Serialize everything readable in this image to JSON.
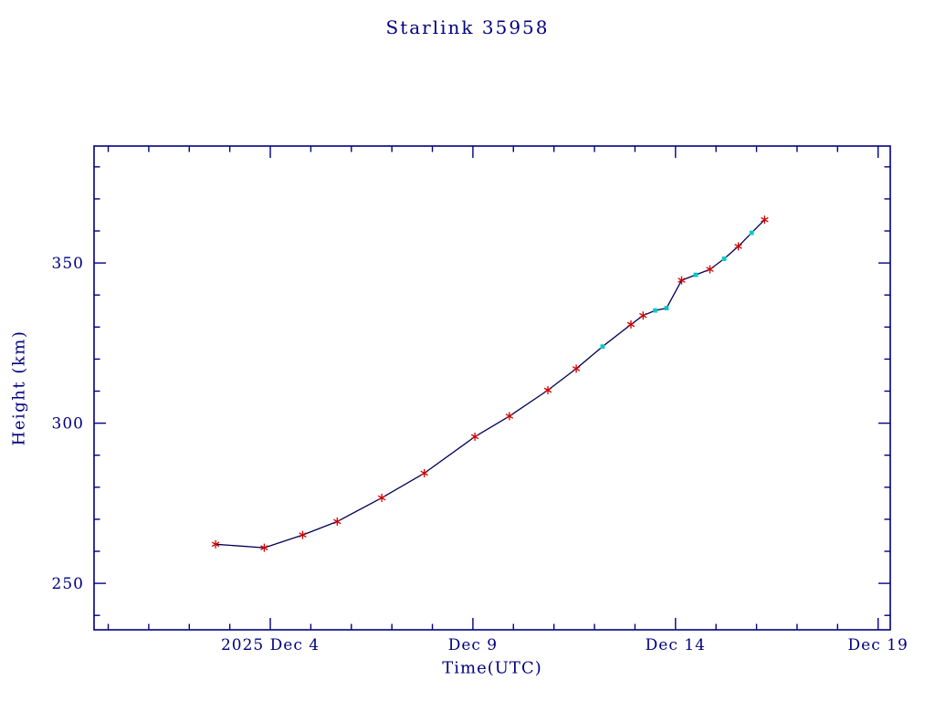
{
  "chart_data": {
    "type": "line",
    "title": "Starlink 35958",
    "xlabel": "Time(UTC)",
    "ylabel": "Height (km)",
    "x_unit": "day of December 2025 (UTC)",
    "xlim": [
      -0.35,
      19.3
    ],
    "ylim": [
      235.5,
      386.5
    ],
    "grid": false,
    "legend": "none",
    "x_major_ticks": [
      {
        "value": 4,
        "label": "2025 Dec 4"
      },
      {
        "value": 9,
        "label": "Dec 9"
      },
      {
        "value": 14,
        "label": "Dec 14"
      },
      {
        "value": 19,
        "label": "Dec 19"
      }
    ],
    "x_minor_tick_values": [
      0,
      1,
      2,
      3,
      5,
      6,
      7,
      8,
      10,
      11,
      12,
      13,
      15,
      16,
      17,
      18
    ],
    "y_major_ticks": [
      {
        "value": 250,
        "label": "250"
      },
      {
        "value": 300,
        "label": "300"
      },
      {
        "value": 350,
        "label": "350"
      }
    ],
    "y_minor_tick_values": [
      240,
      260,
      270,
      280,
      290,
      310,
      320,
      330,
      340,
      360,
      370,
      380
    ],
    "colors": {
      "axis": "#000080",
      "line": "#000055",
      "marker_red": "#cc0000",
      "marker_cyan": "#00c8c8",
      "background": "#ffffff"
    },
    "points": [
      {
        "x": 2.65,
        "y": 262.2,
        "marker": "red"
      },
      {
        "x": 3.85,
        "y": 261.1,
        "marker": "red"
      },
      {
        "x": 4.8,
        "y": 265.1,
        "marker": "red"
      },
      {
        "x": 5.65,
        "y": 269.3,
        "marker": "red"
      },
      {
        "x": 6.75,
        "y": 276.7,
        "marker": "red"
      },
      {
        "x": 7.8,
        "y": 284.4,
        "marker": "red"
      },
      {
        "x": 9.05,
        "y": 295.8,
        "marker": "red"
      },
      {
        "x": 9.9,
        "y": 302.2,
        "marker": "red"
      },
      {
        "x": 10.85,
        "y": 310.3,
        "marker": "red"
      },
      {
        "x": 11.55,
        "y": 317.0,
        "marker": "red"
      },
      {
        "x": 12.2,
        "y": 323.9,
        "marker": "cyan"
      },
      {
        "x": 12.9,
        "y": 330.8,
        "marker": "red"
      },
      {
        "x": 13.2,
        "y": 333.6,
        "marker": "red"
      },
      {
        "x": 13.5,
        "y": 335.2,
        "marker": "cyan"
      },
      {
        "x": 13.78,
        "y": 335.9,
        "marker": "cyan"
      },
      {
        "x": 14.15,
        "y": 344.6,
        "marker": "red"
      },
      {
        "x": 14.5,
        "y": 346.3,
        "marker": "cyan"
      },
      {
        "x": 14.85,
        "y": 348.0,
        "marker": "red"
      },
      {
        "x": 15.2,
        "y": 351.3,
        "marker": "cyan"
      },
      {
        "x": 15.55,
        "y": 355.2,
        "marker": "red"
      },
      {
        "x": 15.88,
        "y": 359.4,
        "marker": "cyan"
      },
      {
        "x": 16.2,
        "y": 363.5,
        "marker": "red"
      }
    ]
  }
}
